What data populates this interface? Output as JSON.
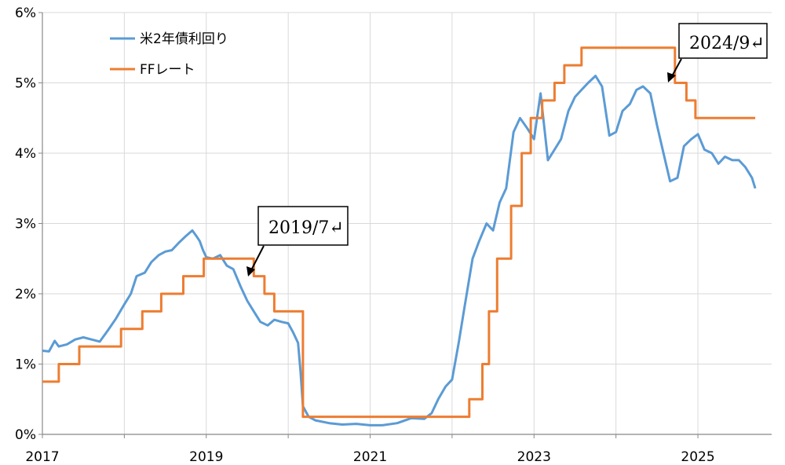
{
  "chart_data": {
    "type": "line",
    "title": "",
    "xlabel": "",
    "ylabel": "",
    "xlim": [
      2017,
      2025.9
    ],
    "ylim": [
      0,
      6
    ],
    "grid": true,
    "legend_position": "top-left",
    "x_ticks": [
      2017,
      2019,
      2021,
      2023,
      2025
    ],
    "x_tick_labels": [
      "2017",
      "2019",
      "2021",
      "2023",
      "2025"
    ],
    "y_ticks": [
      0,
      1,
      2,
      3,
      4,
      5,
      6
    ],
    "y_tick_labels": [
      "0%",
      "1%",
      "2%",
      "3%",
      "4%",
      "5%",
      "6%"
    ],
    "annotations": [
      {
        "text": "2019/7↵",
        "target": [
          2019.58,
          2.25
        ]
      },
      {
        "text": "2024/9↵",
        "target": [
          2024.72,
          5.0
        ]
      }
    ],
    "series": [
      {
        "name": "米2年債利回り",
        "color": "#5B9BD5",
        "points": [
          [
            2017.0,
            1.19
          ],
          [
            2017.08,
            1.18
          ],
          [
            2017.15,
            1.33
          ],
          [
            2017.2,
            1.25
          ],
          [
            2017.3,
            1.28
          ],
          [
            2017.4,
            1.35
          ],
          [
            2017.5,
            1.38
          ],
          [
            2017.6,
            1.35
          ],
          [
            2017.7,
            1.32
          ],
          [
            2017.8,
            1.48
          ],
          [
            2017.9,
            1.65
          ],
          [
            2018.0,
            1.85
          ],
          [
            2018.08,
            2.0
          ],
          [
            2018.15,
            2.25
          ],
          [
            2018.25,
            2.3
          ],
          [
            2018.33,
            2.45
          ],
          [
            2018.42,
            2.55
          ],
          [
            2018.5,
            2.6
          ],
          [
            2018.58,
            2.62
          ],
          [
            2018.66,
            2.72
          ],
          [
            2018.75,
            2.82
          ],
          [
            2018.83,
            2.9
          ],
          [
            2018.88,
            2.82
          ],
          [
            2018.92,
            2.75
          ],
          [
            2018.96,
            2.62
          ],
          [
            2019.0,
            2.52
          ],
          [
            2019.08,
            2.5
          ],
          [
            2019.17,
            2.55
          ],
          [
            2019.25,
            2.4
          ],
          [
            2019.33,
            2.35
          ],
          [
            2019.42,
            2.1
          ],
          [
            2019.5,
            1.9
          ],
          [
            2019.58,
            1.75
          ],
          [
            2019.66,
            1.6
          ],
          [
            2019.75,
            1.55
          ],
          [
            2019.83,
            1.63
          ],
          [
            2019.92,
            1.6
          ],
          [
            2020.0,
            1.58
          ],
          [
            2020.06,
            1.45
          ],
          [
            2020.12,
            1.3
          ],
          [
            2020.15,
            0.9
          ],
          [
            2020.18,
            0.4
          ],
          [
            2020.25,
            0.25
          ],
          [
            2020.33,
            0.2
          ],
          [
            2020.5,
            0.16
          ],
          [
            2020.66,
            0.14
          ],
          [
            2020.83,
            0.15
          ],
          [
            2021.0,
            0.13
          ],
          [
            2021.15,
            0.13
          ],
          [
            2021.33,
            0.16
          ],
          [
            2021.5,
            0.23
          ],
          [
            2021.66,
            0.22
          ],
          [
            2021.75,
            0.3
          ],
          [
            2021.83,
            0.5
          ],
          [
            2021.92,
            0.68
          ],
          [
            2022.0,
            0.78
          ],
          [
            2022.08,
            1.3
          ],
          [
            2022.15,
            1.8
          ],
          [
            2022.25,
            2.5
          ],
          [
            2022.33,
            2.75
          ],
          [
            2022.42,
            3.0
          ],
          [
            2022.5,
            2.9
          ],
          [
            2022.58,
            3.3
          ],
          [
            2022.66,
            3.5
          ],
          [
            2022.75,
            4.3
          ],
          [
            2022.83,
            4.5
          ],
          [
            2022.92,
            4.35
          ],
          [
            2023.0,
            4.2
          ],
          [
            2023.08,
            4.85
          ],
          [
            2023.17,
            3.9
          ],
          [
            2023.25,
            4.05
          ],
          [
            2023.33,
            4.2
          ],
          [
            2023.42,
            4.6
          ],
          [
            2023.5,
            4.8
          ],
          [
            2023.58,
            4.9
          ],
          [
            2023.66,
            5.0
          ],
          [
            2023.75,
            5.1
          ],
          [
            2023.83,
            4.95
          ],
          [
            2023.92,
            4.25
          ],
          [
            2024.0,
            4.3
          ],
          [
            2024.08,
            4.6
          ],
          [
            2024.17,
            4.7
          ],
          [
            2024.25,
            4.9
          ],
          [
            2024.33,
            4.95
          ],
          [
            2024.42,
            4.85
          ],
          [
            2024.5,
            4.4
          ],
          [
            2024.58,
            4.0
          ],
          [
            2024.66,
            3.6
          ],
          [
            2024.75,
            3.65
          ],
          [
            2024.83,
            4.1
          ],
          [
            2024.92,
            4.2
          ],
          [
            2025.0,
            4.27
          ],
          [
            2025.08,
            4.05
          ],
          [
            2025.17,
            4.0
          ],
          [
            2025.25,
            3.85
          ],
          [
            2025.33,
            3.95
          ],
          [
            2025.42,
            3.9
          ],
          [
            2025.5,
            3.9
          ],
          [
            2025.58,
            3.8
          ],
          [
            2025.66,
            3.65
          ],
          [
            2025.7,
            3.5
          ]
        ]
      },
      {
        "name": "FFレート",
        "color": "#ED7D31",
        "step": true,
        "points": [
          [
            2017.0,
            0.75
          ],
          [
            2017.2,
            1.0
          ],
          [
            2017.45,
            1.25
          ],
          [
            2017.96,
            1.5
          ],
          [
            2018.22,
            1.75
          ],
          [
            2018.45,
            2.0
          ],
          [
            2018.72,
            2.25
          ],
          [
            2018.97,
            2.5
          ],
          [
            2019.58,
            2.25
          ],
          [
            2019.71,
            2.0
          ],
          [
            2019.83,
            1.75
          ],
          [
            2020.18,
            0.25
          ],
          [
            2022.21,
            0.5
          ],
          [
            2022.37,
            1.0
          ],
          [
            2022.45,
            1.75
          ],
          [
            2022.55,
            2.5
          ],
          [
            2022.72,
            3.25
          ],
          [
            2022.85,
            4.0
          ],
          [
            2022.96,
            4.5
          ],
          [
            2023.1,
            4.75
          ],
          [
            2023.25,
            5.0
          ],
          [
            2023.37,
            5.25
          ],
          [
            2023.58,
            5.5
          ],
          [
            2024.72,
            5.0
          ],
          [
            2024.86,
            4.75
          ],
          [
            2024.97,
            4.5
          ],
          [
            2025.7,
            4.5
          ]
        ]
      }
    ]
  }
}
